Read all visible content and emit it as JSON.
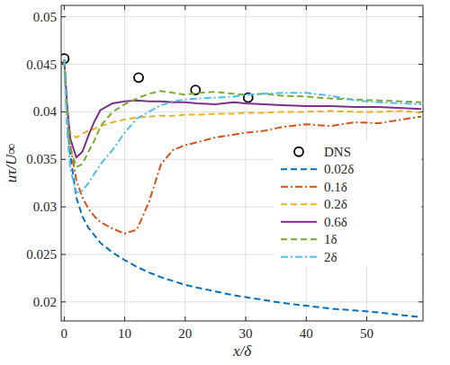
{
  "chart_data": {
    "type": "line",
    "xlabel": "x/δ",
    "ylabel": "uτ/U∞",
    "x": [
      0,
      0.5,
      1,
      2,
      3,
      4,
      5,
      6,
      8,
      10,
      12,
      14,
      16,
      18,
      20,
      22,
      25,
      28,
      30,
      33,
      36,
      40,
      44,
      48,
      52,
      56,
      59
    ],
    "series": [
      {
        "name": "DNS",
        "type": "scatter",
        "marker": "circle",
        "color": "#000000",
        "x": [
          0,
          12.3,
          21.7,
          30.4
        ],
        "values": [
          0.0456,
          0.0436,
          0.0423,
          0.0415
        ]
      },
      {
        "name": "0.02δ",
        "line_style": "dashed",
        "color": "#0072bd",
        "values": [
          0.0455,
          0.039,
          0.0355,
          0.031,
          0.029,
          0.0278,
          0.027,
          0.0262,
          0.0252,
          0.0244,
          0.0237,
          0.0231,
          0.0226,
          0.0222,
          0.0218,
          0.0215,
          0.0211,
          0.0207,
          0.0205,
          0.0202,
          0.0199,
          0.0196,
          0.0193,
          0.0191,
          0.0189,
          0.0186,
          0.0184
        ]
      },
      {
        "name": "0.1δ",
        "line_style": "dashdot",
        "color": "#d95319",
        "values": [
          0.0455,
          0.04,
          0.0365,
          0.0328,
          0.031,
          0.0298,
          0.029,
          0.0284,
          0.0277,
          0.0272,
          0.0276,
          0.0305,
          0.0345,
          0.036,
          0.0365,
          0.0368,
          0.0373,
          0.0376,
          0.0378,
          0.038,
          0.0384,
          0.0387,
          0.0385,
          0.0389,
          0.0388,
          0.0392,
          0.0395
        ]
      },
      {
        "name": "0.2δ",
        "line_style": "dashed",
        "color": "#edb120",
        "values": [
          0.0455,
          0.0392,
          0.0377,
          0.0373,
          0.0377,
          0.038,
          0.0382,
          0.0385,
          0.0389,
          0.0392,
          0.0394,
          0.0395,
          0.0396,
          0.0396,
          0.0397,
          0.0397,
          0.0398,
          0.0398,
          0.0399,
          0.0399,
          0.04,
          0.04,
          0.0401,
          0.04,
          0.04,
          0.0401,
          0.0399
        ]
      },
      {
        "name": "0.6δ",
        "line_style": "solid",
        "color": "#7e2f8e",
        "values": [
          0.0455,
          0.0405,
          0.0372,
          0.0352,
          0.0358,
          0.0375,
          0.039,
          0.0402,
          0.0409,
          0.0411,
          0.0412,
          0.0411,
          0.0411,
          0.041,
          0.041,
          0.0409,
          0.0408,
          0.041,
          0.0409,
          0.0408,
          0.0407,
          0.0406,
          0.0406,
          0.0405,
          0.0405,
          0.0404,
          0.0403
        ]
      },
      {
        "name": "1δ",
        "line_style": "dashed",
        "color": "#77ac30",
        "values": [
          0.0455,
          0.04,
          0.0362,
          0.0342,
          0.0345,
          0.0358,
          0.037,
          0.0385,
          0.04,
          0.0408,
          0.0414,
          0.0419,
          0.0422,
          0.042,
          0.0418,
          0.042,
          0.0421,
          0.0419,
          0.0418,
          0.0419,
          0.0417,
          0.0416,
          0.0414,
          0.0413,
          0.0412,
          0.0411,
          0.041
        ]
      },
      {
        "name": "2δ",
        "line_style": "dashdot",
        "color": "#4dbeee",
        "values": [
          0.0455,
          0.038,
          0.034,
          0.0315,
          0.0317,
          0.0325,
          0.0335,
          0.0345,
          0.036,
          0.0378,
          0.0393,
          0.04,
          0.0407,
          0.0411,
          0.0413,
          0.0414,
          0.0415,
          0.0416,
          0.0418,
          0.0419,
          0.042,
          0.042,
          0.0417,
          0.0412,
          0.041,
          0.0409,
          0.0408
        ]
      }
    ],
    "xlim": [
      -0.5,
      59.3
    ],
    "xticks": [
      0,
      10,
      20,
      30,
      40,
      50
    ],
    "ylim": [
      0.018,
      0.0512
    ],
    "yticks": [
      0.02,
      0.025,
      0.03,
      0.035,
      0.04,
      0.045,
      0.05
    ],
    "grid": true,
    "legend": "right"
  }
}
